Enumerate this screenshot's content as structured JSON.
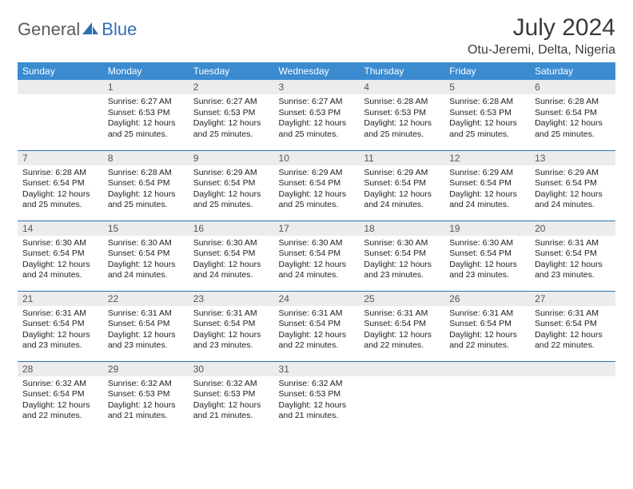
{
  "brand": {
    "part1": "General",
    "part2": "Blue"
  },
  "title": "July 2024",
  "location": "Otu-Jeremi, Delta, Nigeria",
  "colors": {
    "header_bg": "#3b8bd0",
    "accent": "#2f6fb3",
    "daybg": "#ececec",
    "text": "#222222"
  },
  "weekdays": [
    "Sunday",
    "Monday",
    "Tuesday",
    "Wednesday",
    "Thursday",
    "Friday",
    "Saturday"
  ],
  "weeks": [
    [
      {
        "n": "",
        "s": "",
        "t": "",
        "d": ""
      },
      {
        "n": "1",
        "s": "Sunrise: 6:27 AM",
        "t": "Sunset: 6:53 PM",
        "d": "Daylight: 12 hours and 25 minutes."
      },
      {
        "n": "2",
        "s": "Sunrise: 6:27 AM",
        "t": "Sunset: 6:53 PM",
        "d": "Daylight: 12 hours and 25 minutes."
      },
      {
        "n": "3",
        "s": "Sunrise: 6:27 AM",
        "t": "Sunset: 6:53 PM",
        "d": "Daylight: 12 hours and 25 minutes."
      },
      {
        "n": "4",
        "s": "Sunrise: 6:28 AM",
        "t": "Sunset: 6:53 PM",
        "d": "Daylight: 12 hours and 25 minutes."
      },
      {
        "n": "5",
        "s": "Sunrise: 6:28 AM",
        "t": "Sunset: 6:53 PM",
        "d": "Daylight: 12 hours and 25 minutes."
      },
      {
        "n": "6",
        "s": "Sunrise: 6:28 AM",
        "t": "Sunset: 6:54 PM",
        "d": "Daylight: 12 hours and 25 minutes."
      }
    ],
    [
      {
        "n": "7",
        "s": "Sunrise: 6:28 AM",
        "t": "Sunset: 6:54 PM",
        "d": "Daylight: 12 hours and 25 minutes."
      },
      {
        "n": "8",
        "s": "Sunrise: 6:28 AM",
        "t": "Sunset: 6:54 PM",
        "d": "Daylight: 12 hours and 25 minutes."
      },
      {
        "n": "9",
        "s": "Sunrise: 6:29 AM",
        "t": "Sunset: 6:54 PM",
        "d": "Daylight: 12 hours and 25 minutes."
      },
      {
        "n": "10",
        "s": "Sunrise: 6:29 AM",
        "t": "Sunset: 6:54 PM",
        "d": "Daylight: 12 hours and 25 minutes."
      },
      {
        "n": "11",
        "s": "Sunrise: 6:29 AM",
        "t": "Sunset: 6:54 PM",
        "d": "Daylight: 12 hours and 24 minutes."
      },
      {
        "n": "12",
        "s": "Sunrise: 6:29 AM",
        "t": "Sunset: 6:54 PM",
        "d": "Daylight: 12 hours and 24 minutes."
      },
      {
        "n": "13",
        "s": "Sunrise: 6:29 AM",
        "t": "Sunset: 6:54 PM",
        "d": "Daylight: 12 hours and 24 minutes."
      }
    ],
    [
      {
        "n": "14",
        "s": "Sunrise: 6:30 AM",
        "t": "Sunset: 6:54 PM",
        "d": "Daylight: 12 hours and 24 minutes."
      },
      {
        "n": "15",
        "s": "Sunrise: 6:30 AM",
        "t": "Sunset: 6:54 PM",
        "d": "Daylight: 12 hours and 24 minutes."
      },
      {
        "n": "16",
        "s": "Sunrise: 6:30 AM",
        "t": "Sunset: 6:54 PM",
        "d": "Daylight: 12 hours and 24 minutes."
      },
      {
        "n": "17",
        "s": "Sunrise: 6:30 AM",
        "t": "Sunset: 6:54 PM",
        "d": "Daylight: 12 hours and 24 minutes."
      },
      {
        "n": "18",
        "s": "Sunrise: 6:30 AM",
        "t": "Sunset: 6:54 PM",
        "d": "Daylight: 12 hours and 23 minutes."
      },
      {
        "n": "19",
        "s": "Sunrise: 6:30 AM",
        "t": "Sunset: 6:54 PM",
        "d": "Daylight: 12 hours and 23 minutes."
      },
      {
        "n": "20",
        "s": "Sunrise: 6:31 AM",
        "t": "Sunset: 6:54 PM",
        "d": "Daylight: 12 hours and 23 minutes."
      }
    ],
    [
      {
        "n": "21",
        "s": "Sunrise: 6:31 AM",
        "t": "Sunset: 6:54 PM",
        "d": "Daylight: 12 hours and 23 minutes."
      },
      {
        "n": "22",
        "s": "Sunrise: 6:31 AM",
        "t": "Sunset: 6:54 PM",
        "d": "Daylight: 12 hours and 23 minutes."
      },
      {
        "n": "23",
        "s": "Sunrise: 6:31 AM",
        "t": "Sunset: 6:54 PM",
        "d": "Daylight: 12 hours and 23 minutes."
      },
      {
        "n": "24",
        "s": "Sunrise: 6:31 AM",
        "t": "Sunset: 6:54 PM",
        "d": "Daylight: 12 hours and 22 minutes."
      },
      {
        "n": "25",
        "s": "Sunrise: 6:31 AM",
        "t": "Sunset: 6:54 PM",
        "d": "Daylight: 12 hours and 22 minutes."
      },
      {
        "n": "26",
        "s": "Sunrise: 6:31 AM",
        "t": "Sunset: 6:54 PM",
        "d": "Daylight: 12 hours and 22 minutes."
      },
      {
        "n": "27",
        "s": "Sunrise: 6:31 AM",
        "t": "Sunset: 6:54 PM",
        "d": "Daylight: 12 hours and 22 minutes."
      }
    ],
    [
      {
        "n": "28",
        "s": "Sunrise: 6:32 AM",
        "t": "Sunset: 6:54 PM",
        "d": "Daylight: 12 hours and 22 minutes."
      },
      {
        "n": "29",
        "s": "Sunrise: 6:32 AM",
        "t": "Sunset: 6:53 PM",
        "d": "Daylight: 12 hours and 21 minutes."
      },
      {
        "n": "30",
        "s": "Sunrise: 6:32 AM",
        "t": "Sunset: 6:53 PM",
        "d": "Daylight: 12 hours and 21 minutes."
      },
      {
        "n": "31",
        "s": "Sunrise: 6:32 AM",
        "t": "Sunset: 6:53 PM",
        "d": "Daylight: 12 hours and 21 minutes."
      },
      {
        "n": "",
        "s": "",
        "t": "",
        "d": ""
      },
      {
        "n": "",
        "s": "",
        "t": "",
        "d": ""
      },
      {
        "n": "",
        "s": "",
        "t": "",
        "d": ""
      }
    ]
  ]
}
